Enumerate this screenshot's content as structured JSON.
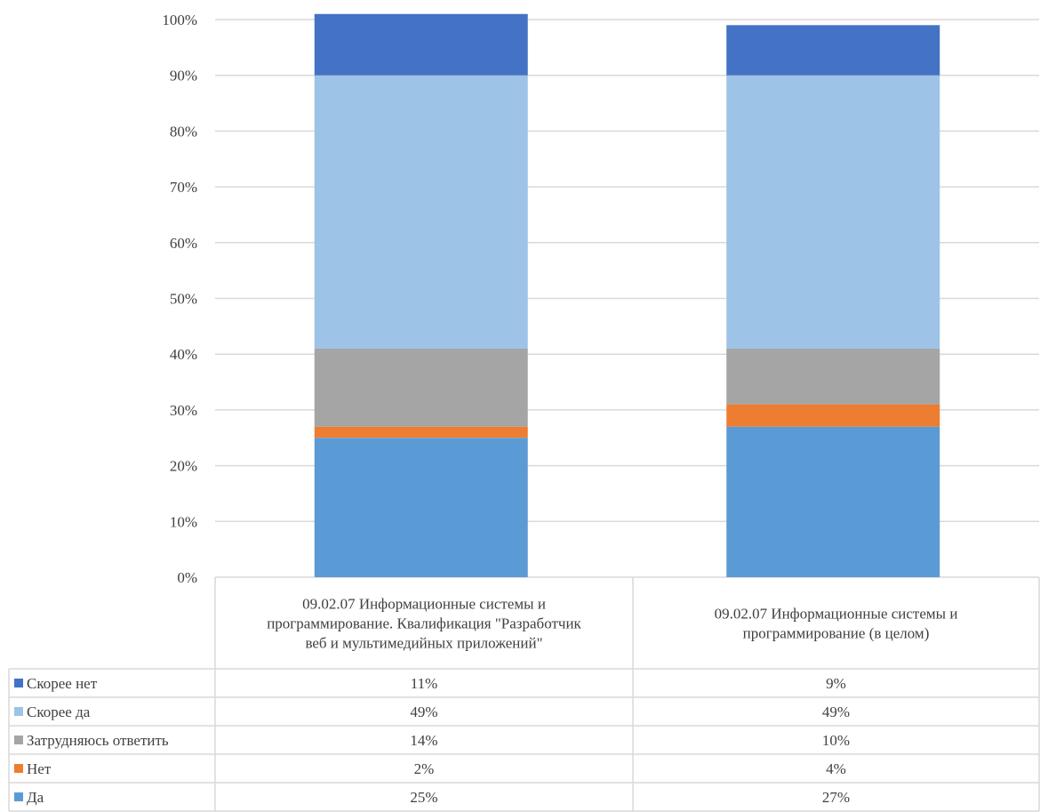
{
  "chart_data": {
    "type": "bar",
    "stacked": true,
    "percent": true,
    "categories": [
      "09.02.07 Информационные системы и программирование. Квалификация \"Разработчик веб и мультимедийных приложений\"",
      "09.02.07 Информационные системы и программирование (в целом)"
    ],
    "series": [
      {
        "name": "Да",
        "values": [
          25,
          27
        ],
        "labels": [
          "25%",
          "27%"
        ],
        "color": "#5B9BD5"
      },
      {
        "name": "Нет",
        "values": [
          2,
          4
        ],
        "labels": [
          "2%",
          "4%"
        ],
        "color": "#ED7D31"
      },
      {
        "name": "Затрудняюсь ответить",
        "values": [
          14,
          10
        ],
        "labels": [
          "14%",
          "10%"
        ],
        "color": "#A5A5A5"
      },
      {
        "name": "Скорее да",
        "values": [
          49,
          49
        ],
        "labels": [
          "49%",
          "49%"
        ],
        "color": "#9DC3E6"
      },
      {
        "name": "Скорее нет",
        "values": [
          11,
          9
        ],
        "labels": [
          "11%",
          "9%"
        ],
        "color": "#4472C4"
      }
    ],
    "yticks": [
      "0%",
      "10%",
      "20%",
      "30%",
      "40%",
      "50%",
      "60%",
      "70%",
      "80%",
      "90%",
      "100%"
    ],
    "ylim": [
      0,
      100
    ],
    "grid": true,
    "legend": "data-table-left"
  }
}
